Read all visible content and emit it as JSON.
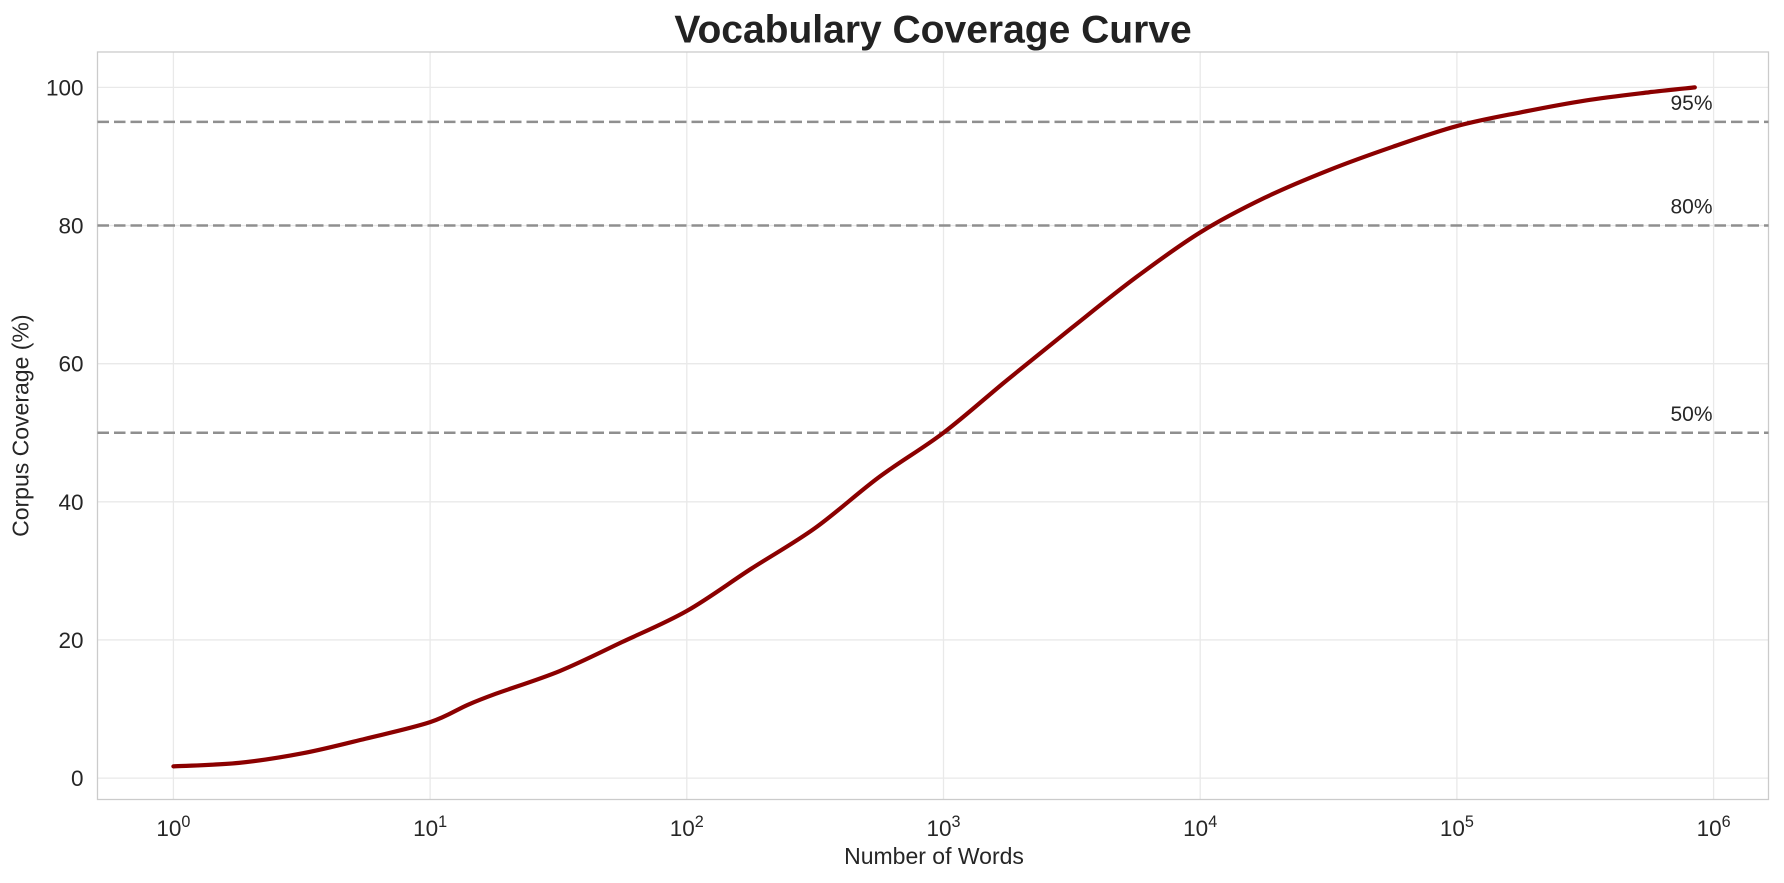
{
  "figure": {
    "background": "#ffffff"
  },
  "chart_data": {
    "type": "line",
    "title": "Vocabulary Coverage Curve",
    "xlabel": "Number of Words",
    "ylabel": "Corpus Coverage (%)",
    "x_scale": "log",
    "y_scale": "linear",
    "xlim": [
      0.5,
      1640000
    ],
    "ylim": [
      -3.1,
      105.1
    ],
    "grid": true,
    "legend": "none",
    "x_tick_exponents": [
      0,
      1,
      2,
      3,
      4,
      5,
      6
    ],
    "x_tick_base": "10",
    "y_ticks": [
      0,
      20,
      40,
      60,
      80,
      100
    ],
    "series": [
      {
        "name": "coverage",
        "color": "#8b0000",
        "points": [
          [
            1,
            1.7
          ],
          [
            1.8,
            2.2
          ],
          [
            3.2,
            3.6
          ],
          [
            5.6,
            5.7
          ],
          [
            10,
            8.1
          ],
          [
            14,
            10.6
          ],
          [
            18,
            12.2
          ],
          [
            32,
            15.5
          ],
          [
            56,
            19.7
          ],
          [
            100,
            24.2
          ],
          [
            178,
            30.3
          ],
          [
            316,
            36.2
          ],
          [
            562,
            43.6
          ],
          [
            1000,
            50.0
          ],
          [
            1778,
            57.7
          ],
          [
            3162,
            65.2
          ],
          [
            5623,
            72.5
          ],
          [
            10000,
            79.0
          ],
          [
            17783,
            84.0
          ],
          [
            31623,
            88.0
          ],
          [
            56234,
            91.4
          ],
          [
            100000,
            94.4
          ],
          [
            177828,
            96.4
          ],
          [
            316228,
            98.1
          ],
          [
            562341,
            99.3
          ],
          [
            845000,
            100.0
          ]
        ]
      }
    ],
    "reference_lines": [
      {
        "y": 50,
        "label": "50%"
      },
      {
        "y": 80,
        "label": "80%"
      },
      {
        "y": 95,
        "label": "95%"
      }
    ]
  },
  "style": {
    "curve_color": "#8b0000",
    "grid_color": "#e9e9e9",
    "spine_color": "#cbcbcb",
    "dash_color": "#8f8f8f",
    "text_color": "#262626",
    "title_color": "#222222"
  }
}
